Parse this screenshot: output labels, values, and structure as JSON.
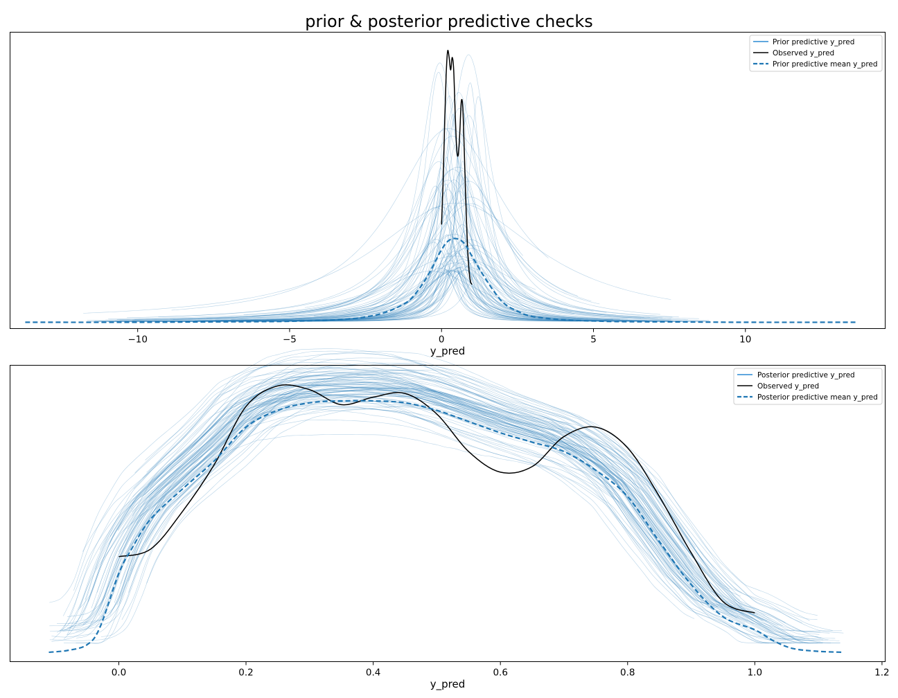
{
  "figure": {
    "title": "prior & posterior predictive checks"
  },
  "chart_data": [
    {
      "type": "line",
      "title": "",
      "xlabel": "y_pred",
      "ylabel": "",
      "xlim": [
        -14.2,
        14.6
      ],
      "ylim": [
        -0.02,
        0.92
      ],
      "xticks": [
        -10,
        -5,
        0,
        5,
        10
      ],
      "xtick_labels": [
        "−10",
        "−5",
        "0",
        "5",
        "10"
      ],
      "yticks_visible": false,
      "grid": false,
      "legend_position": "top-right",
      "legend": [
        "Prior predictive y_pred",
        "Observed y_pred",
        "Prior predictive mean y_pred"
      ],
      "colors": {
        "samples": "#1f77b4",
        "observed": "#000000",
        "mean": "#1f77b4",
        "legend_samples": "#2a8ad4"
      },
      "sample_series_count": 80,
      "series": [
        {
          "name": "Observed y_pred",
          "style": "solid",
          "x": [
            0.0,
            0.05,
            0.1,
            0.15,
            0.2,
            0.25,
            0.3,
            0.35,
            0.4,
            0.45,
            0.5,
            0.55,
            0.6,
            0.65,
            0.7,
            0.75,
            0.8,
            0.85,
            0.9,
            0.95,
            1.0
          ],
          "y": [
            0.31,
            0.44,
            0.62,
            0.78,
            0.86,
            0.84,
            0.8,
            0.84,
            0.8,
            0.66,
            0.55,
            0.53,
            0.6,
            0.7,
            0.68,
            0.54,
            0.38,
            0.25,
            0.17,
            0.13,
            0.12
          ]
        },
        {
          "name": "Prior predictive mean y_pred",
          "style": "dashed",
          "x": [
            -13.7,
            -10,
            -8,
            -6,
            -5,
            -4,
            -3,
            -2.5,
            -2,
            -1.5,
            -1,
            -0.5,
            0,
            0.25,
            0.5,
            0.75,
            1,
            1.5,
            2,
            2.5,
            3,
            4,
            5,
            6,
            8,
            10,
            13.7
          ],
          "y": [
            0.0,
            0.0,
            0.001,
            0.002,
            0.003,
            0.006,
            0.011,
            0.017,
            0.027,
            0.045,
            0.075,
            0.14,
            0.23,
            0.26,
            0.265,
            0.25,
            0.21,
            0.13,
            0.065,
            0.035,
            0.018,
            0.008,
            0.004,
            0.002,
            0.001,
            0.0,
            0.0
          ]
        }
      ]
    },
    {
      "type": "line",
      "title": "",
      "xlabel": "y_pred",
      "ylabel": "",
      "xlim": [
        -0.171,
        1.205
      ],
      "ylim": [
        -0.05,
        1.53
      ],
      "xticks": [
        0.0,
        0.2,
        0.4,
        0.6,
        0.8,
        1.0,
        1.2
      ],
      "xtick_labels": [
        "0.0",
        "0.2",
        "0.4",
        "0.6",
        "0.8",
        "1.0",
        "1.2"
      ],
      "yticks_visible": false,
      "grid": false,
      "legend_position": "top-right",
      "legend": [
        "Posterior predictive y_pred",
        "Observed y_pred",
        "Posterior predictive mean y_pred"
      ],
      "colors": {
        "samples": "#1f77b4",
        "observed": "#000000",
        "mean": "#1f77b4",
        "legend_samples": "#2a8ad4"
      },
      "sample_series_count": 90,
      "series": [
        {
          "name": "Observed y_pred",
          "style": "solid",
          "x": [
            0.0,
            0.05,
            0.1,
            0.15,
            0.2,
            0.25,
            0.3,
            0.35,
            0.4,
            0.45,
            0.5,
            0.55,
            0.6,
            0.65,
            0.7,
            0.75,
            0.8,
            0.85,
            0.9,
            0.95,
            1.0
          ],
          "y": [
            0.51,
            0.55,
            0.75,
            1.0,
            1.31,
            1.42,
            1.4,
            1.32,
            1.36,
            1.38,
            1.27,
            1.07,
            0.96,
            0.99,
            1.15,
            1.2,
            1.09,
            0.83,
            0.53,
            0.27,
            0.21
          ]
        },
        {
          "name": "Posterior predictive mean y_pred",
          "style": "dashed",
          "x": [
            -0.11,
            -0.08,
            -0.05,
            -0.03,
            0.0,
            0.02,
            0.05,
            0.1,
            0.15,
            0.2,
            0.25,
            0.3,
            0.35,
            0.4,
            0.45,
            0.5,
            0.55,
            0.6,
            0.65,
            0.7,
            0.75,
            0.8,
            0.85,
            0.9,
            0.95,
            1.0,
            1.03,
            1.06,
            1.1,
            1.14
          ],
          "y": [
            0.0,
            0.01,
            0.04,
            0.13,
            0.42,
            0.55,
            0.71,
            0.87,
            1.02,
            1.2,
            1.29,
            1.33,
            1.34,
            1.34,
            1.33,
            1.29,
            1.23,
            1.17,
            1.12,
            1.07,
            0.97,
            0.83,
            0.59,
            0.36,
            0.19,
            0.12,
            0.06,
            0.02,
            0.005,
            0.0
          ]
        }
      ]
    }
  ]
}
